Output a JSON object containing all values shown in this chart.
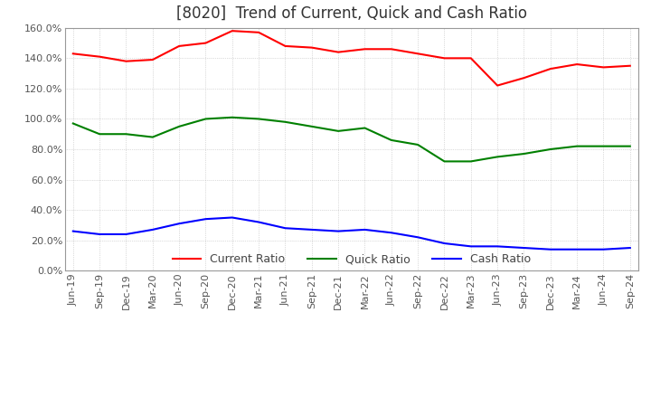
{
  "title": "[8020]  Trend of Current, Quick and Cash Ratio",
  "x_labels": [
    "Jun-19",
    "Sep-19",
    "Dec-19",
    "Mar-20",
    "Jun-20",
    "Sep-20",
    "Dec-20",
    "Mar-21",
    "Jun-21",
    "Sep-21",
    "Dec-21",
    "Mar-22",
    "Jun-22",
    "Sep-22",
    "Dec-22",
    "Mar-23",
    "Jun-23",
    "Sep-23",
    "Dec-23",
    "Mar-24",
    "Jun-24",
    "Sep-24"
  ],
  "current_ratio": [
    143,
    141,
    138,
    139,
    148,
    150,
    158,
    157,
    148,
    147,
    144,
    146,
    146,
    143,
    140,
    140,
    122,
    127,
    133,
    136,
    134,
    135
  ],
  "quick_ratio": [
    97,
    90,
    90,
    88,
    95,
    100,
    101,
    100,
    98,
    95,
    92,
    94,
    86,
    83,
    72,
    72,
    75,
    77,
    80,
    82,
    82,
    82
  ],
  "cash_ratio": [
    26,
    24,
    24,
    27,
    31,
    34,
    35,
    32,
    28,
    27,
    26,
    27,
    25,
    22,
    18,
    16,
    16,
    15,
    14,
    14,
    14,
    15
  ],
  "current_color": "#ff0000",
  "quick_color": "#008000",
  "cash_color": "#0000ff",
  "ylim": [
    0,
    160
  ],
  "yticks": [
    0,
    20,
    40,
    60,
    80,
    100,
    120,
    140,
    160
  ],
  "background_color": "#ffffff",
  "grid_color": "#aaaaaa",
  "title_fontsize": 12,
  "legend_fontsize": 9,
  "tick_fontsize": 8
}
